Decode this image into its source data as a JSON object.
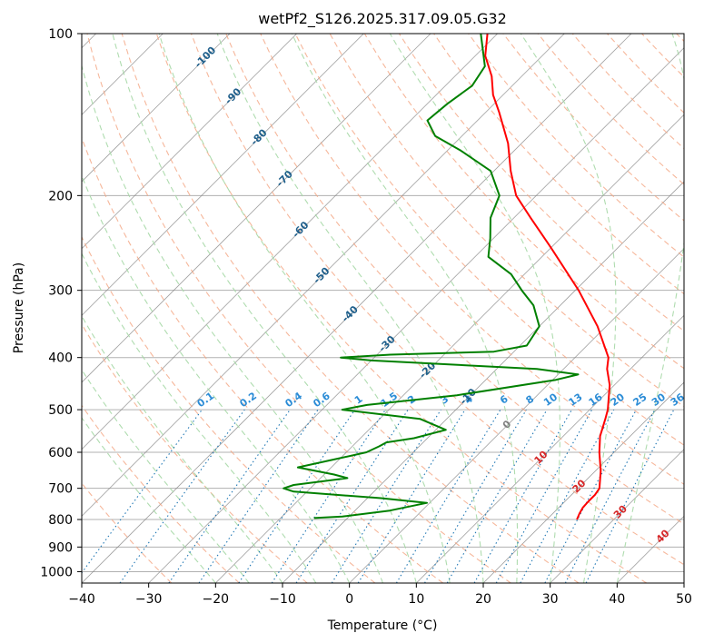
{
  "chart_data": {
    "type": "line",
    "title": "wetPf2_S126.2025.317.09.05.G32",
    "xlabel": "Temperature (°C)",
    "ylabel": "Pressure (hPa)",
    "xlim": [
      -40,
      50
    ],
    "ylim": [
      1050,
      100
    ],
    "y_scale": "log",
    "skew": "skew-T (isotherms slanted 45°)",
    "grid": true,
    "x_ticks": [
      "−40",
      "−30",
      "−20",
      "−10",
      "0",
      "10",
      "20",
      "30",
      "40",
      "50"
    ],
    "x_tick_values": [
      -40,
      -30,
      -20,
      -10,
      0,
      10,
      20,
      30,
      40,
      50
    ],
    "y_ticks": [
      "100",
      "200",
      "300",
      "400",
      "500",
      "600",
      "700",
      "800",
      "900",
      "1000"
    ],
    "y_tick_values": [
      100,
      200,
      300,
      400,
      500,
      600,
      700,
      800,
      900,
      1000
    ],
    "colors": {
      "temperature": "#ff0000",
      "dewpoint": "#008000",
      "isotherm": "#808080",
      "dry_adiabat": "#f4a582",
      "moist_adiabat": "#a6d8a6",
      "mixing_ratio": "#1f77b4",
      "adiabat_label": "#d62728",
      "isotherm_label": "#1f5f8b"
    },
    "series": [
      {
        "name": "",
        "role": "temperature",
        "points": [
          {
            "p": 800,
            "t": 24.5
          },
          {
            "p": 780,
            "t": 24.0
          },
          {
            "p": 760,
            "t": 23.6
          },
          {
            "p": 740,
            "t": 23.5
          },
          {
            "p": 720,
            "t": 23.5
          },
          {
            "p": 700,
            "t": 23.2
          },
          {
            "p": 650,
            "t": 20.8
          },
          {
            "p": 600,
            "t": 17.8
          },
          {
            "p": 560,
            "t": 15.5
          },
          {
            "p": 520,
            "t": 13.7
          },
          {
            "p": 500,
            "t": 12.7
          },
          {
            "p": 450,
            "t": 9.3
          },
          {
            "p": 420,
            "t": 6.5
          },
          {
            "p": 400,
            "t": 5.0
          },
          {
            "p": 350,
            "t": -1.3
          },
          {
            "p": 300,
            "t": -9.5
          },
          {
            "p": 250,
            "t": -20.0
          },
          {
            "p": 220,
            "t": -27.5
          },
          {
            "p": 200,
            "t": -33.0
          },
          {
            "p": 180,
            "t": -37.5
          },
          {
            "p": 160,
            "t": -42.0
          },
          {
            "p": 140,
            "t": -48.0
          },
          {
            "p": 130,
            "t": -51.5
          },
          {
            "p": 120,
            "t": -54.5
          },
          {
            "p": 110,
            "t": -58.5
          },
          {
            "p": 100,
            "t": -61.5
          }
        ]
      },
      {
        "name": "",
        "role": "dewpoint",
        "points": [
          {
            "p": 795,
            "t": -15.0
          },
          {
            "p": 790,
            "t": -11.0
          },
          {
            "p": 770,
            "t": -4.8
          },
          {
            "p": 745,
            "t": -0.4
          },
          {
            "p": 730,
            "t": -8.0
          },
          {
            "p": 710,
            "t": -22.0
          },
          {
            "p": 700,
            "t": -24.0
          },
          {
            "p": 690,
            "t": -23.0
          },
          {
            "p": 670,
            "t": -16.0
          },
          {
            "p": 660,
            "t": -18.5
          },
          {
            "p": 640,
            "t": -25.0
          },
          {
            "p": 620,
            "t": -21.0
          },
          {
            "p": 600,
            "t": -17.0
          },
          {
            "p": 585,
            "t": -16.0
          },
          {
            "p": 575,
            "t": -15.5
          },
          {
            "p": 565,
            "t": -12.0
          },
          {
            "p": 545,
            "t": -8.5
          },
          {
            "p": 520,
            "t": -14.0
          },
          {
            "p": 500,
            "t": -27.0
          },
          {
            "p": 490,
            "t": -24.0
          },
          {
            "p": 470,
            "t": -12.0
          },
          {
            "p": 440,
            "t": 0.5
          },
          {
            "p": 430,
            "t": 3.0
          },
          {
            "p": 420,
            "t": -4.0
          },
          {
            "p": 405,
            "t": -30.0
          },
          {
            "p": 400,
            "t": -35.0
          },
          {
            "p": 395,
            "t": -28.0
          },
          {
            "p": 390,
            "t": -13.0
          },
          {
            "p": 380,
            "t": -9.0
          },
          {
            "p": 350,
            "t": -10.0
          },
          {
            "p": 320,
            "t": -14.0
          },
          {
            "p": 300,
            "t": -18.0
          },
          {
            "p": 280,
            "t": -22.0
          },
          {
            "p": 260,
            "t": -28.0
          },
          {
            "p": 240,
            "t": -30.5
          },
          {
            "p": 220,
            "t": -33.5
          },
          {
            "p": 200,
            "t": -35.5
          },
          {
            "p": 180,
            "t": -40.5
          },
          {
            "p": 165,
            "t": -48.0
          },
          {
            "p": 155,
            "t": -54.0
          },
          {
            "p": 145,
            "t": -57.5
          },
          {
            "p": 135,
            "t": -57.0
          },
          {
            "p": 125,
            "t": -56.0
          },
          {
            "p": 115,
            "t": -57.0
          },
          {
            "p": 100,
            "t": -62.5
          }
        ]
      }
    ],
    "mixing_ratio_labels": [
      "0.1",
      "0.2",
      "0.4",
      "0.6",
      "1",
      "1.5",
      "2",
      "3",
      "4",
      "6",
      "8",
      "10",
      "13",
      "16",
      "20",
      "25",
      "30",
      "36"
    ],
    "mixing_ratio_values": [
      0.1,
      0.2,
      0.4,
      0.6,
      1,
      1.5,
      2,
      3,
      4,
      6,
      8,
      10,
      13,
      16,
      20,
      25,
      30,
      36
    ],
    "isotherm_labels": [
      {
        "text": "-100",
        "p": 110
      },
      {
        "text": "-90",
        "p": 130
      },
      {
        "text": "-80",
        "p": 155
      },
      {
        "text": "-70",
        "p": 185
      },
      {
        "text": "-60",
        "p": 230
      },
      {
        "text": "-50",
        "p": 280
      },
      {
        "text": "-40",
        "p": 330
      },
      {
        "text": "-30",
        "p": 375
      },
      {
        "text": "-20",
        "p": 420
      },
      {
        "text": "-10",
        "p": 470
      },
      {
        "text": "0",
        "p": 530
      },
      {
        "text": "10",
        "p": 610
      },
      {
        "text": "20",
        "p": 690
      },
      {
        "text": "30",
        "p": 770
      },
      {
        "text": "40",
        "p": 855
      }
    ]
  }
}
